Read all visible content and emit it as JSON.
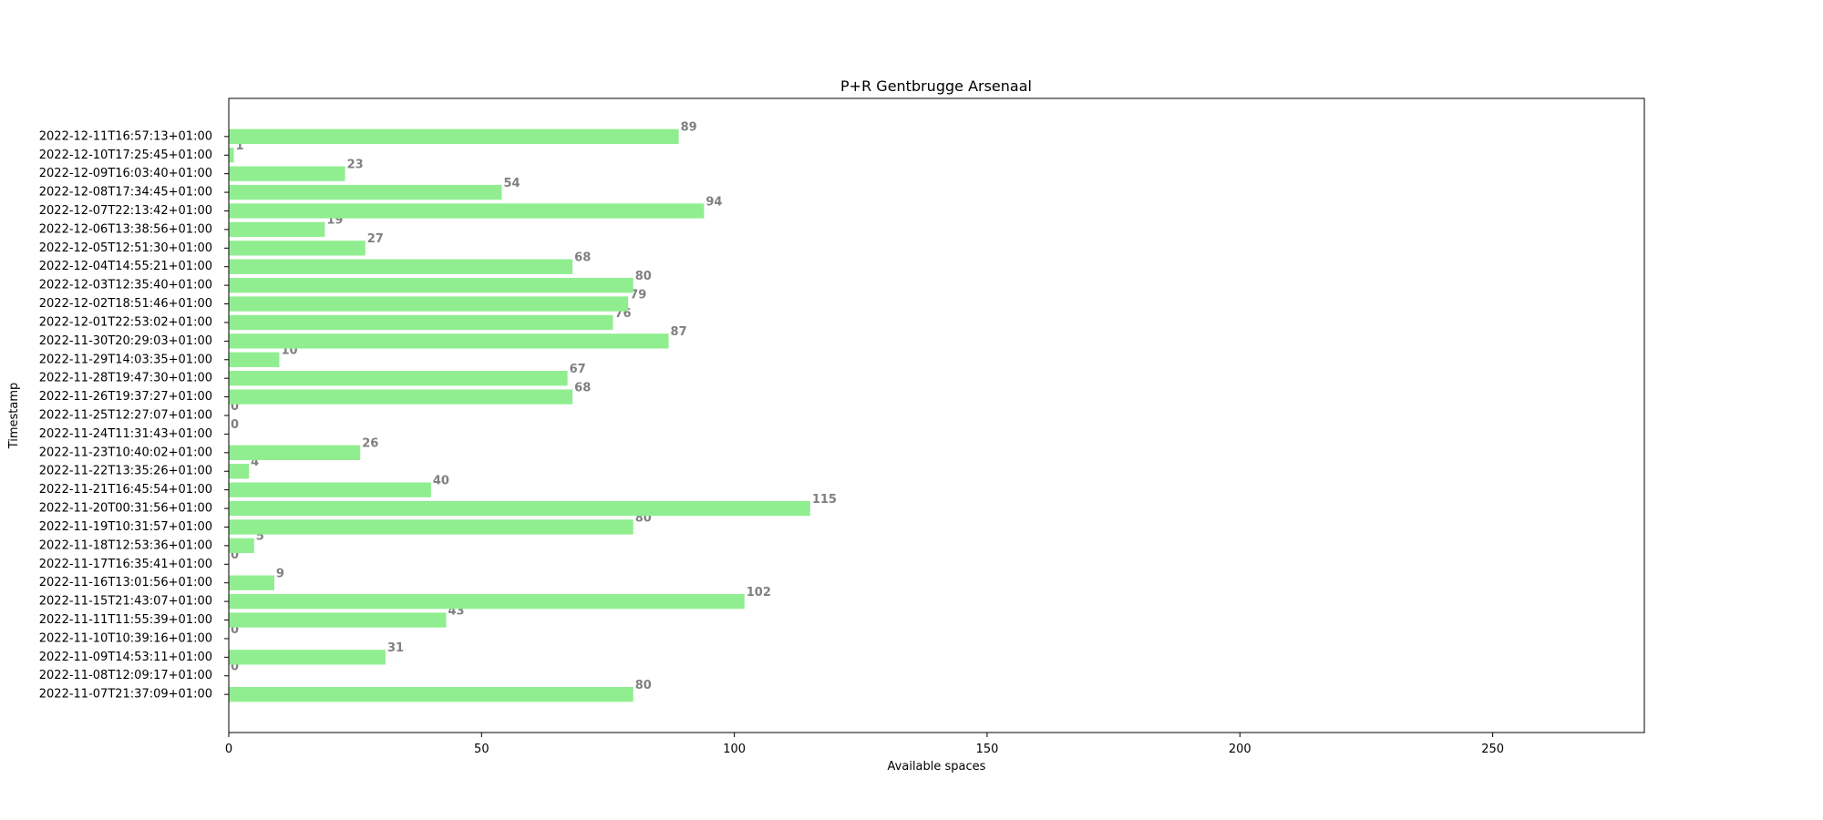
{
  "chart_data": {
    "type": "bar",
    "orientation": "horizontal",
    "title": "P+R Gentbrugge Arsenaal",
    "xlabel": "Available spaces",
    "ylabel": "Timestamp",
    "xlim": [
      0,
      280
    ],
    "xticks": [
      0,
      50,
      100,
      150,
      200,
      250
    ],
    "grid": false,
    "bar_color": "#90EE90",
    "value_label_color": "#808080",
    "categories": [
      "2022-11-07T21:37:09+01:00",
      "2022-11-08T12:09:17+01:00",
      "2022-11-09T14:53:11+01:00",
      "2022-11-10T10:39:16+01:00",
      "2022-11-11T11:55:39+01:00",
      "2022-11-15T21:43:07+01:00",
      "2022-11-16T13:01:56+01:00",
      "2022-11-17T16:35:41+01:00",
      "2022-11-18T12:53:36+01:00",
      "2022-11-19T10:31:57+01:00",
      "2022-11-20T00:31:56+01:00",
      "2022-11-21T16:45:54+01:00",
      "2022-11-22T13:35:26+01:00",
      "2022-11-23T10:40:02+01:00",
      "2022-11-24T11:31:43+01:00",
      "2022-11-25T12:27:07+01:00",
      "2022-11-26T19:37:27+01:00",
      "2022-11-28T19:47:30+01:00",
      "2022-11-29T14:03:35+01:00",
      "2022-11-30T20:29:03+01:00",
      "2022-12-01T22:53:02+01:00",
      "2022-12-02T18:51:46+01:00",
      "2022-12-03T12:35:40+01:00",
      "2022-12-04T14:55:21+01:00",
      "2022-12-05T12:51:30+01:00",
      "2022-12-06T13:38:56+01:00",
      "2022-12-07T22:13:42+01:00",
      "2022-12-08T17:34:45+01:00",
      "2022-12-09T16:03:40+01:00",
      "2022-12-10T17:25:45+01:00",
      "2022-12-11T16:57:13+01:00"
    ],
    "values": [
      80,
      0,
      31,
      0,
      43,
      102,
      9,
      0,
      5,
      80,
      115,
      40,
      4,
      26,
      0,
      0,
      68,
      67,
      10,
      87,
      76,
      79,
      80,
      68,
      27,
      19,
      94,
      54,
      23,
      1,
      89
    ]
  }
}
